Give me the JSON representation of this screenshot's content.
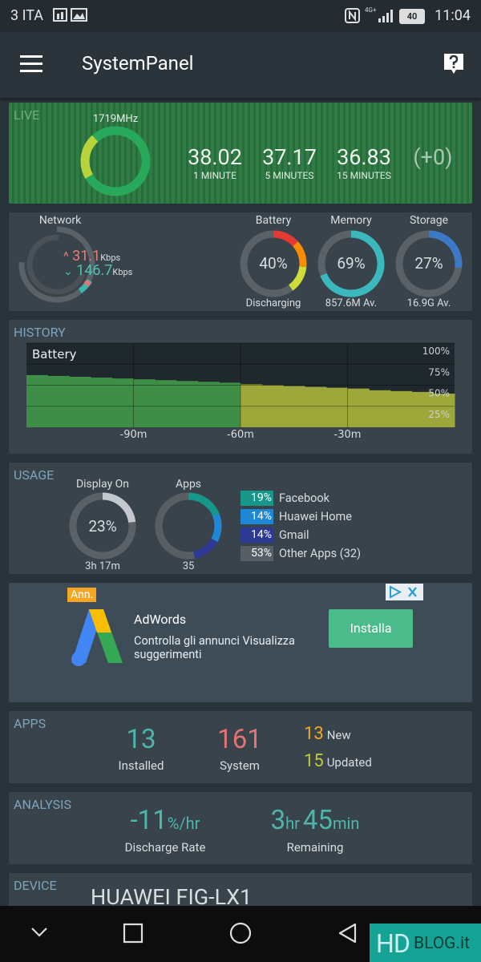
{
  "status_bar": {
    "carrier": "3 ITA",
    "network": "4G+",
    "battery": "40",
    "time": "11:04"
  },
  "app_bar": {
    "title": "SystemPanel"
  },
  "live": {
    "label": "LIVE",
    "cpu_frequency": "1719MHz",
    "load_averages": [
      {
        "value": "38.02",
        "period": "1 MINUTE"
      },
      {
        "value": "37.17",
        "period": "5 MINUTES"
      },
      {
        "value": "36.83",
        "period": "15 MINUTES"
      }
    ],
    "change": "(+0)"
  },
  "overview": {
    "network": {
      "title": "Network",
      "upload": "31.1",
      "upload_unit": "Kbps",
      "download": "146.7",
      "download_unit": "Kbps"
    },
    "gauges": [
      {
        "title": "Battery",
        "value": 40,
        "label": "40%",
        "caption": "Discharging",
        "colors": [
          "#e53935",
          "#fb8c00",
          "#cddc39"
        ]
      },
      {
        "title": "Memory",
        "value": 69,
        "label": "69%",
        "caption": "857.6M Av.",
        "colors": [
          "#3bb8bd"
        ]
      },
      {
        "title": "Storage",
        "value": 27,
        "label": "27%",
        "caption": "16.9G Av.",
        "colors": [
          "#3d78c9"
        ]
      }
    ]
  },
  "history": {
    "label": "HISTORY",
    "chart": {
      "title": "Battery",
      "ylim": [
        0,
        100
      ],
      "yticks": [
        {
          "value": 100,
          "label": "100%"
        },
        {
          "value": 75,
          "label": "75%"
        },
        {
          "value": 50,
          "label": "50%"
        },
        {
          "value": 25,
          "label": "25%"
        }
      ],
      "xticks": [
        "-90m",
        "-60m",
        "-30m"
      ],
      "segments": [
        {
          "color": "#3e8e47",
          "values": [
            62,
            61,
            60,
            59,
            58,
            57,
            56,
            55,
            54,
            53
          ]
        },
        {
          "color": "#9ea83a",
          "values": [
            51,
            50,
            49,
            48,
            47,
            46,
            44,
            43,
            42,
            40
          ]
        }
      ]
    }
  },
  "usage": {
    "label": "USAGE",
    "display": {
      "title": "Display On",
      "value": 23,
      "label": "23%",
      "caption": "3h 17m",
      "color": "#c3c9ce"
    },
    "apps": {
      "title": "Apps",
      "caption": "35"
    },
    "items": [
      {
        "value": 19,
        "label": "19%",
        "name": "Facebook",
        "color": "#17968a"
      },
      {
        "value": 14,
        "label": "14%",
        "name": "Huawei Home",
        "color": "#1e88d5"
      },
      {
        "value": 14,
        "label": "14%",
        "name": "Gmail",
        "color": "#2c3a96"
      },
      {
        "value": 53,
        "label": "53%",
        "name": "Other Apps (32)",
        "color": "#585f64"
      }
    ]
  },
  "ad": {
    "badge": "Ann.",
    "title": "AdWords",
    "text": "Controlla gli annunci Visualizza suggerimenti",
    "button": "Installa"
  },
  "apps": {
    "label": "APPS",
    "installed": {
      "value": "13",
      "caption": "Installed"
    },
    "system": {
      "value": "161",
      "caption": "System"
    },
    "new": {
      "value": "13",
      "caption": "New"
    },
    "updated": {
      "value": "15",
      "caption": "Updated"
    }
  },
  "analysis": {
    "label": "ANALYSIS",
    "rate": {
      "value": "-11",
      "unit": "%/hr",
      "caption": "Discharge Rate"
    },
    "remaining": {
      "hours": "3",
      "hours_unit": "hr",
      "minutes": "45",
      "minutes_unit": "min",
      "caption": "Remaining"
    }
  },
  "device": {
    "label": "DEVICE",
    "model": "HUAWEI FIG-LX1"
  },
  "watermark": {
    "brand": "HD",
    "suffix": "BLOG.it"
  }
}
